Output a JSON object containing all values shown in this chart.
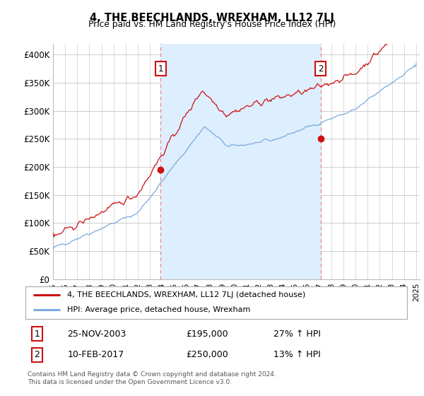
{
  "title": "4, THE BEECHLANDS, WREXHAM, LL12 7LJ",
  "subtitle": "Price paid vs. HM Land Registry's House Price Index (HPI)",
  "ylim": [
    0,
    420000
  ],
  "yticks": [
    0,
    50000,
    100000,
    150000,
    200000,
    250000,
    300000,
    350000,
    400000
  ],
  "ytick_labels": [
    "£0",
    "£50K",
    "£100K",
    "£150K",
    "£200K",
    "£250K",
    "£300K",
    "£350K",
    "£400K"
  ],
  "x_start_year": 1995,
  "x_end_year": 2025,
  "sale1_year": 2003.9,
  "sale1_price": 195000,
  "sale1_label": "1",
  "sale1_text": "25-NOV-2003",
  "sale1_amount": "£195,000",
  "sale1_pct": "27% ↑ HPI",
  "sale2_year": 2017.1,
  "sale2_price": 250000,
  "sale2_label": "2",
  "sale2_text": "10-FEB-2017",
  "sale2_amount": "£250,000",
  "sale2_pct": "13% ↑ HPI",
  "hpi_color": "#7aaadd",
  "price_color": "#cc1111",
  "vline_color": "#ee8888",
  "shade_color": "#ddeeff",
  "background_color": "#ffffff",
  "grid_color": "#cccccc",
  "legend_label_price": "4, THE BEECHLANDS, WREXHAM, LL12 7LJ (detached house)",
  "legend_label_hpi": "HPI: Average price, detached house, Wrexham",
  "footer": "Contains HM Land Registry data © Crown copyright and database right 2024.\nThis data is licensed under the Open Government Licence v3.0."
}
